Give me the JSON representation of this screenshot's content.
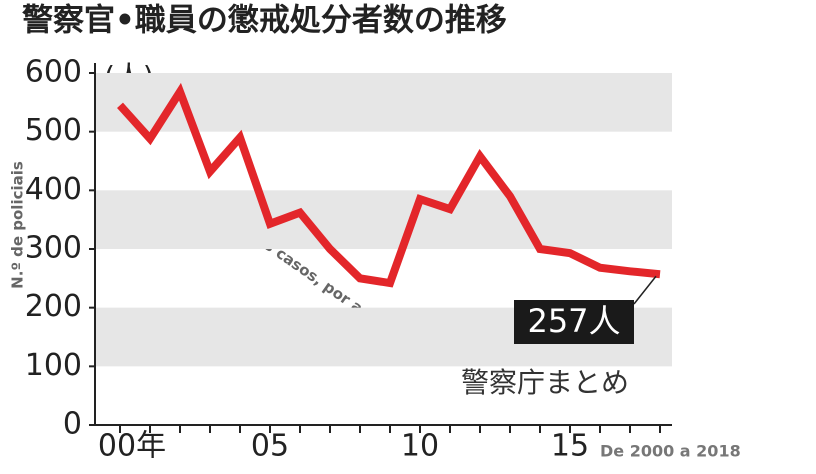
{
  "chart_data": {
    "type": "line",
    "title": "警察官•職員の懲戒処分者数の推移",
    "unit": "(人)",
    "y_label": "N.º de policiais",
    "annotation": "curva dos casos, por ano",
    "source": "警察庁まとめ",
    "footnote": "De 2000 a 2018",
    "categories": [
      "00年",
      null,
      null,
      null,
      null,
      "05",
      null,
      null,
      null,
      null,
      "10",
      null,
      null,
      null,
      null,
      "15",
      null,
      null,
      null
    ],
    "values": [
      545,
      488,
      568,
      432,
      490,
      343,
      362,
      300,
      250,
      242,
      385,
      368,
      458,
      390,
      300,
      293,
      268,
      262,
      257
    ],
    "value_labels": [
      null,
      null,
      null,
      null,
      null,
      null,
      null,
      null,
      null,
      null,
      null,
      null,
      null,
      null,
      null,
      null,
      null,
      null,
      "257人"
    ],
    "color": "#e3262a",
    "ylim": [
      0,
      600
    ],
    "yticks": [
      0,
      100,
      200,
      300,
      400,
      500,
      600
    ],
    "grid_bands": true
  }
}
